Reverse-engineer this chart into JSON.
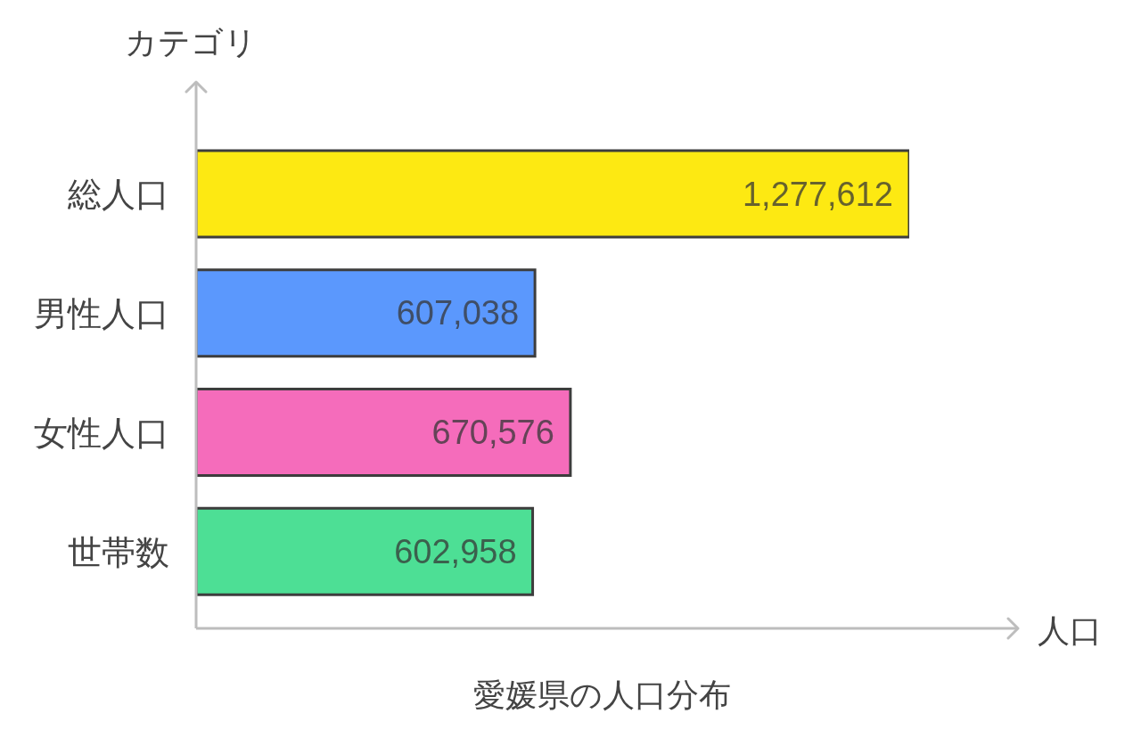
{
  "chart_data": {
    "type": "bar",
    "orientation": "horizontal",
    "title": "愛媛県の人口分布",
    "xlabel": "人口",
    "ylabel": "カテゴリ",
    "categories": [
      "総人口",
      "男性人口",
      "女性人口",
      "世帯数"
    ],
    "values": [
      1277612,
      607038,
      670576,
      602958
    ],
    "value_labels": [
      "1,277,612",
      "607,038",
      "670,576",
      "602,958"
    ],
    "colors": [
      "#fde912",
      "#5b98fd",
      "#f56cbb",
      "#4ddf95"
    ]
  }
}
